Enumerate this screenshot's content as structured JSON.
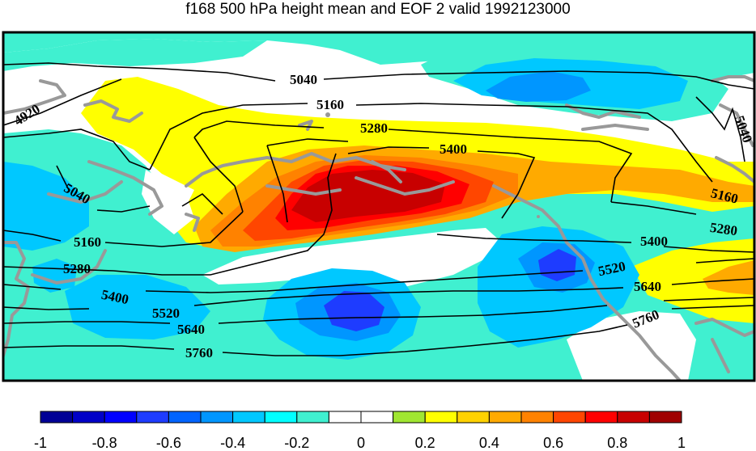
{
  "title": "f168 500 hPa height mean and EOF 2 valid 1992123000",
  "colorbar": {
    "colors": [
      "#000096",
      "#0000c8",
      "#0000ff",
      "#1e3cff",
      "#0064ff",
      "#0096ff",
      "#00c8ff",
      "#00ffff",
      "#40f0d0",
      "#ffffff",
      "#ffffff",
      "#a0e632",
      "#ffff00",
      "#ffd200",
      "#ffaa00",
      "#ff8200",
      "#ff4600",
      "#ff0000",
      "#c80000",
      "#a00000"
    ],
    "tick_labels": [
      "-1",
      "-0.8",
      "-0.6",
      "-0.4",
      "-0.2",
      "0",
      "0.2",
      "0.4",
      "0.6",
      "0.8",
      "1"
    ]
  },
  "contour_labels": [
    {
      "text": "4920",
      "name": "contour-label-4920"
    },
    {
      "text": "5040",
      "name": "contour-label-5040-north"
    },
    {
      "text": "5160",
      "name": "contour-label-5160-north"
    },
    {
      "text": "5280",
      "name": "contour-label-5280-north"
    },
    {
      "text": "5400",
      "name": "contour-label-5400-north"
    },
    {
      "text": "5040",
      "name": "contour-label-5040-west"
    },
    {
      "text": "5160",
      "name": "contour-label-5160-west"
    },
    {
      "text": "5280",
      "name": "contour-label-5280-west"
    },
    {
      "text": "5400",
      "name": "contour-label-5400-west"
    },
    {
      "text": "5520",
      "name": "contour-label-5520-west"
    },
    {
      "text": "5640",
      "name": "contour-label-5640-west"
    },
    {
      "text": "5760",
      "name": "contour-label-5760-west"
    },
    {
      "text": "5400",
      "name": "contour-label-5400-east"
    },
    {
      "text": "5520",
      "name": "contour-label-5520-east"
    },
    {
      "text": "5640",
      "name": "contour-label-5640-east"
    },
    {
      "text": "5760",
      "name": "contour-label-5760-east"
    },
    {
      "text": "5160",
      "name": "contour-label-5160-east"
    },
    {
      "text": "5280",
      "name": "contour-label-5280-east"
    },
    {
      "text": "5040",
      "name": "contour-label-5040-east"
    }
  ]
}
